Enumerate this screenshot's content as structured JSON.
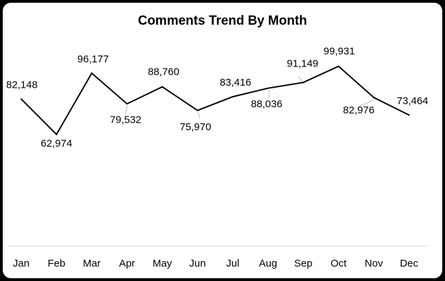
{
  "chart_data": {
    "type": "line",
    "title": "Comments Trend By Month",
    "xlabel": "",
    "ylabel": "",
    "categories": [
      "Jan",
      "Feb",
      "Mar",
      "Apr",
      "May",
      "Jun",
      "Jul",
      "Aug",
      "Sep",
      "Oct",
      "Nov",
      "Dec"
    ],
    "values": [
      82148,
      62974,
      96177,
      79532,
      88760,
      75970,
      83416,
      88036,
      91149,
      99931,
      82976,
      73464
    ],
    "data_labels": [
      "82,148",
      "62,974",
      "96,177",
      "79,532",
      "88,760",
      "75,970",
      "83,416",
      "88,036",
      "91,149",
      "99,931",
      "82,976",
      "73,464"
    ],
    "grid": false,
    "legend": "none",
    "line_color": "#000000"
  }
}
